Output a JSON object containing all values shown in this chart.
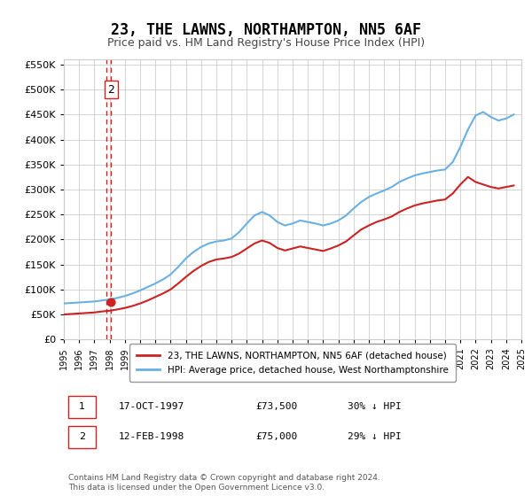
{
  "title": "23, THE LAWNS, NORTHAMPTON, NN5 6AF",
  "subtitle": "Price paid vs. HM Land Registry's House Price Index (HPI)",
  "ylabel_ticks": [
    "£0",
    "£50K",
    "£100K",
    "£150K",
    "£200K",
    "£250K",
    "£300K",
    "£350K",
    "£400K",
    "£450K",
    "£500K",
    "£550K"
  ],
  "ytick_values": [
    0,
    50000,
    100000,
    150000,
    200000,
    250000,
    300000,
    350000,
    400000,
    450000,
    500000,
    550000
  ],
  "ylim": [
    0,
    560000
  ],
  "xlim_years": [
    1995,
    2025
  ],
  "hpi_color": "#6ab0e0",
  "price_color": "#cc2222",
  "dashed_color": "#cc2222",
  "background_color": "#ffffff",
  "grid_color": "#cccccc",
  "legend_label_red": "23, THE LAWNS, NORTHAMPTON, NN5 6AF (detached house)",
  "legend_label_blue": "HPI: Average price, detached house, West Northamptonshire",
  "footer": "Contains HM Land Registry data © Crown copyright and database right 2024.\nThis data is licensed under the Open Government Licence v3.0.",
  "sale1_date": "17-OCT-1997",
  "sale1_price": "£73,500",
  "sale1_hpi": "30% ↓ HPI",
  "sale1_year": 1997.8,
  "sale1_value": 73500,
  "sale2_date": "12-FEB-1998",
  "sale2_price": "£75,000",
  "sale2_hpi": "29% ↓ HPI",
  "sale2_year": 1998.1,
  "sale2_value": 75000,
  "hpi_years": [
    1995,
    1995.5,
    1996,
    1996.5,
    1997,
    1997.5,
    1998,
    1998.5,
    1999,
    1999.5,
    2000,
    2000.5,
    2001,
    2001.5,
    2002,
    2002.5,
    2003,
    2003.5,
    2004,
    2004.5,
    2005,
    2005.5,
    2006,
    2006.5,
    2007,
    2007.5,
    2008,
    2008.5,
    2009,
    2009.5,
    2010,
    2010.5,
    2011,
    2011.5,
    2012,
    2012.5,
    2013,
    2013.5,
    2014,
    2014.5,
    2015,
    2015.5,
    2016,
    2016.5,
    2017,
    2017.5,
    2018,
    2018.5,
    2019,
    2019.5,
    2020,
    2020.5,
    2021,
    2021.5,
    2022,
    2022.5,
    2023,
    2023.5,
    2024,
    2024.5
  ],
  "hpi_values": [
    72000,
    73000,
    74000,
    75000,
    76000,
    78000,
    80000,
    83000,
    87000,
    92000,
    98000,
    105000,
    112000,
    120000,
    130000,
    145000,
    162000,
    175000,
    185000,
    192000,
    196000,
    198000,
    202000,
    215000,
    232000,
    248000,
    255000,
    248000,
    235000,
    228000,
    232000,
    238000,
    235000,
    232000,
    228000,
    232000,
    238000,
    248000,
    262000,
    275000,
    285000,
    292000,
    298000,
    305000,
    315000,
    322000,
    328000,
    332000,
    335000,
    338000,
    340000,
    355000,
    385000,
    420000,
    448000,
    455000,
    445000,
    438000,
    442000,
    450000
  ],
  "price_years": [
    1995,
    1995.5,
    1996,
    1996.5,
    1997,
    1997.5,
    1998,
    1998.5,
    1999,
    1999.5,
    2000,
    2000.5,
    2001,
    2001.5,
    2002,
    2002.5,
    2003,
    2003.5,
    2004,
    2004.5,
    2005,
    2005.5,
    2006,
    2006.5,
    2007,
    2007.5,
    2008,
    2008.5,
    2009,
    2009.5,
    2010,
    2010.5,
    2011,
    2011.5,
    2012,
    2012.5,
    2013,
    2013.5,
    2014,
    2014.5,
    2015,
    2015.5,
    2016,
    2016.5,
    2017,
    2017.5,
    2018,
    2018.5,
    2019,
    2019.5,
    2020,
    2020.5,
    2021,
    2021.5,
    2022,
    2022.5,
    2023,
    2023.5,
    2024,
    2024.5
  ],
  "price_values": [
    50000,
    51000,
    52000,
    53000,
    54000,
    56000,
    57500,
    60000,
    63000,
    67000,
    72000,
    78000,
    85000,
    92000,
    100000,
    112000,
    125000,
    137000,
    147000,
    155000,
    160000,
    162000,
    165000,
    172000,
    182000,
    192000,
    198000,
    193000,
    183000,
    178000,
    182000,
    186000,
    183000,
    180000,
    177000,
    182000,
    188000,
    196000,
    208000,
    220000,
    228000,
    235000,
    240000,
    246000,
    255000,
    262000,
    268000,
    272000,
    275000,
    278000,
    280000,
    292000,
    310000,
    325000,
    315000,
    310000,
    305000,
    302000,
    305000,
    308000
  ]
}
